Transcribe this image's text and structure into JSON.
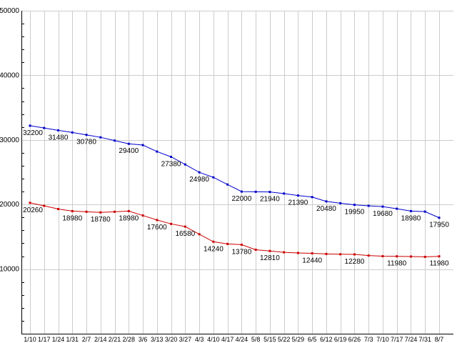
{
  "page": {
    "background": "#ffffff"
  },
  "chart_data": {
    "type": "line",
    "title": "",
    "xlabel": "",
    "ylabel": "",
    "ylim": [
      0,
      50000
    ],
    "y_ticks": [
      10000,
      20000,
      30000,
      40000,
      50000
    ],
    "y_minor_step": 2000,
    "grid": true,
    "legend": "none",
    "x_labels": [
      "1/10",
      "1/17",
      "1/24",
      "1/31",
      "2/7",
      "2/14",
      "2/21",
      "2/28",
      "3/6",
      "3/13",
      "3/20",
      "3/27",
      "4/3",
      "4/10",
      "4/17",
      "4/24",
      "5/8",
      "5/15",
      "5/22",
      "5/29",
      "6/5",
      "6/12",
      "6/19",
      "6/26",
      "7/3",
      "7/10",
      "7/17",
      "7/24",
      "7/31",
      "8/7"
    ],
    "series": [
      {
        "name": "series-blue",
        "color": "#0000cc",
        "values": [
          32200,
          31850,
          31480,
          31150,
          30780,
          30400,
          29900,
          29400,
          29200,
          28200,
          27380,
          26200,
          24980,
          24200,
          23100,
          22000,
          21970,
          21940,
          21700,
          21390,
          21150,
          20480,
          20200,
          19950,
          19800,
          19680,
          19350,
          18980,
          18900,
          17950
        ],
        "labeled_indices": [
          0,
          2,
          4,
          7,
          10,
          12,
          15,
          17,
          19,
          21,
          23,
          25,
          27,
          29
        ],
        "point_labels": [
          32200,
          31480,
          30780,
          29400,
          27380,
          24980,
          22000,
          21940,
          21390,
          20480,
          19950,
          19680,
          18980,
          17950
        ]
      },
      {
        "name": "series-red",
        "color": "#cc0000",
        "values": [
          20260,
          19800,
          19300,
          18980,
          18880,
          18780,
          18880,
          18980,
          18300,
          17600,
          17000,
          16580,
          15400,
          14240,
          13900,
          13780,
          13000,
          12810,
          12600,
          12500,
          12440,
          12350,
          12300,
          12280,
          12100,
          12000,
          11980,
          11950,
          11900,
          11980
        ],
        "labeled_indices": [
          0,
          3,
          5,
          7,
          9,
          11,
          13,
          15,
          17,
          20,
          23,
          26,
          29
        ],
        "point_labels": [
          20260,
          18980,
          18780,
          18980,
          17600,
          16580,
          14240,
          13780,
          12810,
          12440,
          12280,
          11980,
          11980
        ]
      }
    ],
    "colors": {
      "grid": "#cccccc",
      "axis": "#000000",
      "tick_label_text": "#000000",
      "value_label_text": "#000000"
    }
  }
}
